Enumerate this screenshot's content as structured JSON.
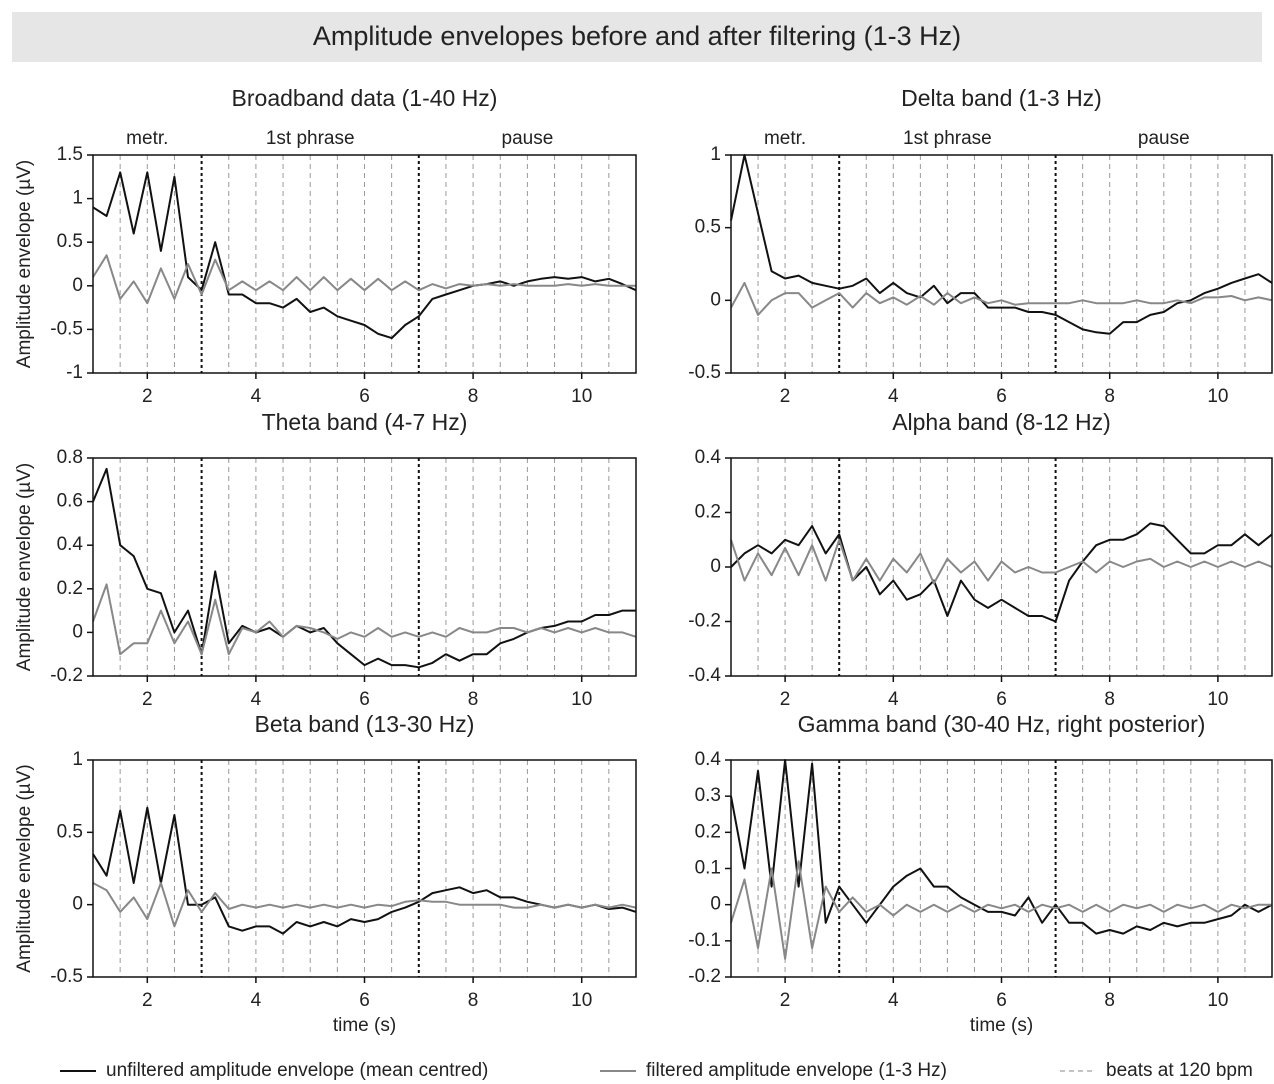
{
  "title": "Amplitude envelopes before and after filtering (1-3 Hz)",
  "legend": [
    {
      "label": "unfiltered amplitude envelope (mean centred)",
      "color": "#111111",
      "style": "solid"
    },
    {
      "label": "filtered amplitude envelope (1-3 Hz)",
      "color": "#888888",
      "style": "solid"
    },
    {
      "label": "beats at 120 bpm",
      "color": "#888888",
      "style": "dashed"
    }
  ],
  "chart_data": [
    {
      "type": "line",
      "title": "Broadband data (1-40 Hz)",
      "ylabel": "Amplitude envelope (µV)",
      "annotations": [
        {
          "text": "metr.",
          "x": 2
        },
        {
          "text": "1st phrase",
          "x": 5
        },
        {
          "text": "pause",
          "x": 9
        }
      ],
      "boundaries": [
        3,
        7
      ],
      "beats": [
        1.5,
        2,
        2.5,
        3.5,
        4,
        4.5,
        5,
        5.5,
        6,
        6.5,
        7.5,
        8,
        8.5,
        9,
        9.5,
        10,
        10.5
      ],
      "xlim": [
        1,
        11
      ],
      "xticks": [
        2,
        4,
        6,
        8,
        10
      ],
      "ylim": [
        -1,
        1.5
      ],
      "yticks": [
        -1,
        -0.5,
        0,
        0.5,
        1,
        1.5
      ],
      "x": [
        1,
        1.25,
        1.5,
        1.75,
        2,
        2.25,
        2.5,
        2.75,
        3,
        3.25,
        3.5,
        3.75,
        4,
        4.25,
        4.5,
        4.75,
        5,
        5.25,
        5.5,
        5.75,
        6,
        6.25,
        6.5,
        6.75,
        7,
        7.25,
        7.5,
        7.75,
        8,
        8.25,
        8.5,
        8.75,
        9,
        9.25,
        9.5,
        9.75,
        10,
        10.25,
        10.5,
        10.75,
        11
      ],
      "series": [
        {
          "color": "#111111",
          "values": [
            0.9,
            0.8,
            1.3,
            0.6,
            1.3,
            0.4,
            1.25,
            0.1,
            -0.05,
            0.5,
            -0.1,
            -0.1,
            -0.2,
            -0.2,
            -0.25,
            -0.15,
            -0.3,
            -0.25,
            -0.35,
            -0.4,
            -0.45,
            -0.55,
            -0.6,
            -0.45,
            -0.35,
            -0.15,
            -0.1,
            -0.05,
            0,
            0.02,
            0.05,
            0,
            0.05,
            0.08,
            0.1,
            0.08,
            0.1,
            0.05,
            0.08,
            0.02,
            -0.05
          ]
        },
        {
          "color": "#888888",
          "values": [
            0.1,
            0.35,
            -0.15,
            0.05,
            -0.2,
            0.2,
            -0.15,
            0.25,
            -0.1,
            0.3,
            -0.05,
            0.05,
            -0.05,
            0.05,
            -0.05,
            0.1,
            -0.05,
            0.1,
            -0.05,
            0.08,
            -0.05,
            0.08,
            -0.05,
            0.05,
            -0.05,
            0.02,
            -0.03,
            0.02,
            0,
            0.02,
            0,
            0.02,
            0,
            0,
            0,
            0.02,
            0,
            0.02,
            0,
            0,
            0
          ]
        }
      ]
    },
    {
      "type": "line",
      "title": "Delta band (1-3 Hz)",
      "annotations": [
        {
          "text": "metr.",
          "x": 2
        },
        {
          "text": "1st phrase",
          "x": 5
        },
        {
          "text": "pause",
          "x": 9
        }
      ],
      "boundaries": [
        3,
        7
      ],
      "beats": [
        1.5,
        2,
        2.5,
        3.5,
        4,
        4.5,
        5,
        5.5,
        6,
        6.5,
        7.5,
        8,
        8.5,
        9,
        9.5,
        10,
        10.5
      ],
      "xlim": [
        1,
        11
      ],
      "xticks": [
        2,
        4,
        6,
        8,
        10
      ],
      "ylim": [
        -0.5,
        1
      ],
      "yticks": [
        -0.5,
        0,
        0.5,
        1
      ],
      "x": [
        1,
        1.25,
        1.5,
        1.75,
        2,
        2.25,
        2.5,
        2.75,
        3,
        3.25,
        3.5,
        3.75,
        4,
        4.25,
        4.5,
        4.75,
        5,
        5.25,
        5.5,
        5.75,
        6,
        6.25,
        6.5,
        6.75,
        7,
        7.25,
        7.5,
        7.75,
        8,
        8.25,
        8.5,
        8.75,
        9,
        9.25,
        9.5,
        9.75,
        10,
        10.25,
        10.5,
        10.75,
        11
      ],
      "series": [
        {
          "color": "#111111",
          "values": [
            0.55,
            1.0,
            0.6,
            0.2,
            0.15,
            0.17,
            0.12,
            0.1,
            0.08,
            0.1,
            0.15,
            0.05,
            0.12,
            0.05,
            0.02,
            0.1,
            -0.02,
            0.05,
            0.05,
            -0.05,
            -0.05,
            -0.05,
            -0.08,
            -0.08,
            -0.1,
            -0.15,
            -0.2,
            -0.22,
            -0.23,
            -0.15,
            -0.15,
            -0.1,
            -0.08,
            -0.02,
            0,
            0.05,
            0.08,
            0.12,
            0.15,
            0.18,
            0.12
          ]
        },
        {
          "color": "#888888",
          "values": [
            -0.05,
            0.12,
            -0.1,
            0,
            0.05,
            0.05,
            -0.05,
            0,
            0.05,
            -0.05,
            0.05,
            -0.02,
            0.02,
            -0.03,
            0.03,
            -0.03,
            0.05,
            -0.02,
            0.02,
            -0.02,
            0,
            -0.03,
            -0.02,
            -0.02,
            -0.02,
            -0.02,
            0,
            -0.02,
            -0.02,
            -0.02,
            0,
            -0.02,
            -0.02,
            0,
            -0.02,
            0.02,
            0.02,
            0.03,
            0,
            0.02,
            0
          ]
        }
      ]
    },
    {
      "type": "line",
      "title": "Theta band (4-7 Hz)",
      "ylabel": "Amplitude envelope (µV)",
      "boundaries": [
        3,
        7
      ],
      "beats": [
        1.5,
        2,
        2.5,
        3.5,
        4,
        4.5,
        5,
        5.5,
        6,
        6.5,
        7.5,
        8,
        8.5,
        9,
        9.5,
        10,
        10.5
      ],
      "xlim": [
        1,
        11
      ],
      "xticks": [
        2,
        4,
        6,
        8,
        10
      ],
      "ylim": [
        -0.2,
        0.8
      ],
      "yticks": [
        -0.2,
        0,
        0.2,
        0.4,
        0.6,
        0.8
      ],
      "x": [
        1,
        1.25,
        1.5,
        1.75,
        2,
        2.25,
        2.5,
        2.75,
        3,
        3.25,
        3.5,
        3.75,
        4,
        4.25,
        4.5,
        4.75,
        5,
        5.25,
        5.5,
        5.75,
        6,
        6.25,
        6.5,
        6.75,
        7,
        7.25,
        7.5,
        7.75,
        8,
        8.25,
        8.5,
        8.75,
        9,
        9.25,
        9.5,
        9.75,
        10,
        10.25,
        10.5,
        10.75,
        11
      ],
      "series": [
        {
          "color": "#111111",
          "values": [
            0.6,
            0.75,
            0.4,
            0.35,
            0.2,
            0.18,
            0,
            0.1,
            -0.1,
            0.28,
            -0.05,
            0.03,
            0,
            0.02,
            -0.02,
            0.03,
            0,
            0.02,
            -0.05,
            -0.1,
            -0.15,
            -0.12,
            -0.15,
            -0.15,
            -0.16,
            -0.14,
            -0.1,
            -0.13,
            -0.1,
            -0.1,
            -0.05,
            -0.03,
            0,
            0.02,
            0.03,
            0.05,
            0.05,
            0.08,
            0.08,
            0.1,
            0.1
          ]
        },
        {
          "color": "#888888",
          "values": [
            0.05,
            0.22,
            -0.1,
            -0.05,
            -0.05,
            0.1,
            -0.05,
            0.05,
            -0.1,
            0.15,
            -0.1,
            0.02,
            0,
            0.05,
            -0.02,
            0.03,
            0.02,
            0,
            -0.03,
            0,
            -0.02,
            0.02,
            -0.02,
            0,
            -0.02,
            0,
            -0.02,
            0.02,
            0,
            0,
            0.02,
            0.02,
            0,
            0.02,
            0,
            0.02,
            0,
            0.02,
            0,
            0,
            -0.02
          ]
        }
      ]
    },
    {
      "type": "line",
      "title": "Alpha band (8-12 Hz)",
      "boundaries": [
        3,
        7
      ],
      "beats": [
        1.5,
        2,
        2.5,
        3.5,
        4,
        4.5,
        5,
        5.5,
        6,
        6.5,
        7.5,
        8,
        8.5,
        9,
        9.5,
        10,
        10.5
      ],
      "xlim": [
        1,
        11
      ],
      "xticks": [
        2,
        4,
        6,
        8,
        10
      ],
      "ylim": [
        -0.4,
        0.4
      ],
      "yticks": [
        -0.4,
        -0.2,
        0,
        0.2,
        0.4
      ],
      "x": [
        1,
        1.25,
        1.5,
        1.75,
        2,
        2.25,
        2.5,
        2.75,
        3,
        3.25,
        3.5,
        3.75,
        4,
        4.25,
        4.5,
        4.75,
        5,
        5.25,
        5.5,
        5.75,
        6,
        6.25,
        6.5,
        6.75,
        7,
        7.25,
        7.5,
        7.75,
        8,
        8.25,
        8.5,
        8.75,
        9,
        9.25,
        9.5,
        9.75,
        10,
        10.25,
        10.5,
        10.75,
        11
      ],
      "series": [
        {
          "color": "#111111",
          "values": [
            0,
            0.05,
            0.08,
            0.05,
            0.1,
            0.08,
            0.15,
            0.05,
            0.12,
            -0.05,
            0,
            -0.1,
            -0.05,
            -0.12,
            -0.1,
            -0.05,
            -0.18,
            -0.05,
            -0.12,
            -0.15,
            -0.12,
            -0.15,
            -0.18,
            -0.18,
            -0.2,
            -0.05,
            0.02,
            0.08,
            0.1,
            0.1,
            0.12,
            0.16,
            0.15,
            0.1,
            0.05,
            0.05,
            0.08,
            0.08,
            0.12,
            0.08,
            0.12
          ]
        },
        {
          "color": "#888888",
          "values": [
            0.1,
            -0.05,
            0.05,
            -0.03,
            0.07,
            -0.03,
            0.08,
            -0.05,
            0.1,
            -0.05,
            0.03,
            -0.05,
            0.03,
            -0.02,
            0.05,
            -0.06,
            0.03,
            -0.02,
            0.02,
            -0.05,
            0.02,
            -0.02,
            0,
            -0.02,
            -0.02,
            0,
            0.02,
            -0.02,
            0.02,
            0,
            0.02,
            0.03,
            0,
            0.02,
            0,
            0.02,
            0,
            0.02,
            0,
            0.02,
            0
          ]
        }
      ]
    },
    {
      "type": "line",
      "title": "Beta band (13-30 Hz)",
      "ylabel": "Amplitude envelope (µV)",
      "xlabel": "time (s)",
      "boundaries": [
        3,
        7
      ],
      "beats": [
        1.5,
        2,
        2.5,
        3.5,
        4,
        4.5,
        5,
        5.5,
        6,
        6.5,
        7.5,
        8,
        8.5,
        9,
        9.5,
        10,
        10.5
      ],
      "xlim": [
        1,
        11
      ],
      "xticks": [
        2,
        4,
        6,
        8,
        10
      ],
      "ylim": [
        -0.5,
        1
      ],
      "yticks": [
        -0.5,
        0,
        0.5,
        1
      ],
      "x": [
        1,
        1.25,
        1.5,
        1.75,
        2,
        2.25,
        2.5,
        2.75,
        3,
        3.25,
        3.5,
        3.75,
        4,
        4.25,
        4.5,
        4.75,
        5,
        5.25,
        5.5,
        5.75,
        6,
        6.25,
        6.5,
        6.75,
        7,
        7.25,
        7.5,
        7.75,
        8,
        8.25,
        8.5,
        8.75,
        9,
        9.25,
        9.5,
        9.75,
        10,
        10.25,
        10.5,
        10.75,
        11
      ],
      "series": [
        {
          "color": "#111111",
          "values": [
            0.35,
            0.2,
            0.65,
            0.15,
            0.67,
            0.15,
            0.62,
            0,
            0,
            0.05,
            -0.15,
            -0.18,
            -0.15,
            -0.15,
            -0.2,
            -0.12,
            -0.15,
            -0.12,
            -0.15,
            -0.1,
            -0.12,
            -0.1,
            -0.05,
            -0.02,
            0.02,
            0.08,
            0.1,
            0.12,
            0.08,
            0.1,
            0.05,
            0.05,
            0.02,
            0,
            -0.02,
            0,
            -0.02,
            0,
            -0.03,
            -0.02,
            -0.05
          ]
        },
        {
          "color": "#888888",
          "values": [
            0.15,
            0.1,
            -0.05,
            0.05,
            -0.1,
            0.15,
            -0.15,
            0.1,
            -0.05,
            0.08,
            -0.03,
            0,
            -0.02,
            0,
            -0.02,
            0,
            -0.02,
            0,
            -0.02,
            0,
            -0.02,
            0,
            -0.01,
            0.02,
            0.03,
            0.02,
            0.02,
            0,
            0,
            0,
            0,
            -0.02,
            -0.02,
            0,
            -0.02,
            0,
            -0.02,
            0,
            -0.02,
            0,
            -0.02
          ]
        }
      ]
    },
    {
      "type": "line",
      "title": "Gamma band (30-40 Hz, right posterior)",
      "xlabel": "time (s)",
      "boundaries": [
        3,
        7
      ],
      "beats": [
        1.5,
        2,
        2.5,
        3.5,
        4,
        4.5,
        5,
        5.5,
        6,
        6.5,
        7.5,
        8,
        8.5,
        9,
        9.5,
        10,
        10.5
      ],
      "xlim": [
        1,
        11
      ],
      "xticks": [
        2,
        4,
        6,
        8,
        10
      ],
      "ylim": [
        -0.2,
        0.4
      ],
      "yticks": [
        -0.2,
        -0.1,
        0,
        0.1,
        0.2,
        0.3,
        0.4
      ],
      "x": [
        1,
        1.25,
        1.5,
        1.75,
        2,
        2.25,
        2.5,
        2.75,
        3,
        3.25,
        3.5,
        3.75,
        4,
        4.25,
        4.5,
        4.75,
        5,
        5.25,
        5.5,
        5.75,
        6,
        6.25,
        6.5,
        6.75,
        7,
        7.25,
        7.5,
        7.75,
        8,
        8.25,
        8.5,
        8.75,
        9,
        9.25,
        9.5,
        9.75,
        10,
        10.25,
        10.5,
        10.75,
        11
      ],
      "series": [
        {
          "color": "#111111",
          "values": [
            0.3,
            0.1,
            0.37,
            0.05,
            0.4,
            0.05,
            0.39,
            -0.05,
            0.05,
            0,
            -0.05,
            0,
            0.05,
            0.08,
            0.1,
            0.05,
            0.05,
            0.02,
            0,
            -0.02,
            -0.02,
            -0.03,
            0.02,
            -0.05,
            0,
            -0.05,
            -0.05,
            -0.08,
            -0.07,
            -0.08,
            -0.06,
            -0.07,
            -0.05,
            -0.06,
            -0.05,
            -0.05,
            -0.04,
            -0.03,
            0,
            -0.02,
            0
          ]
        },
        {
          "color": "#888888",
          "values": [
            -0.05,
            0.07,
            -0.12,
            0.1,
            -0.15,
            0.12,
            -0.12,
            0.05,
            -0.02,
            0.02,
            -0.02,
            0,
            -0.03,
            0,
            -0.02,
            0,
            -0.02,
            0,
            -0.02,
            0,
            -0.01,
            0,
            -0.02,
            0,
            -0.01,
            0,
            -0.02,
            0,
            -0.02,
            0,
            -0.01,
            0,
            -0.02,
            0,
            -0.01,
            0,
            -0.02,
            0,
            -0.01,
            0,
            0
          ]
        }
      ]
    }
  ]
}
